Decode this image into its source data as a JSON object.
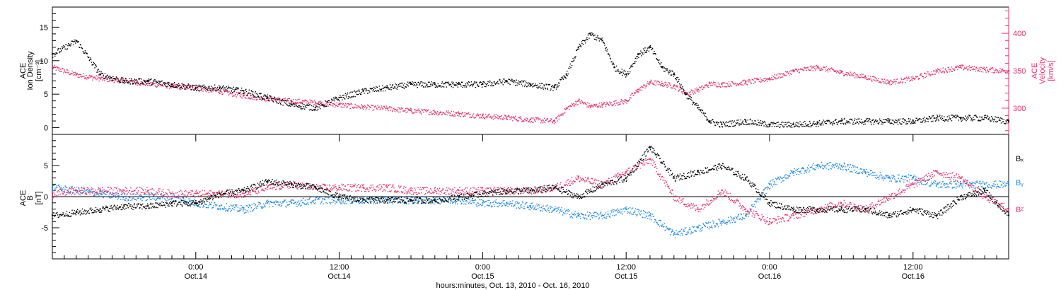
{
  "colors": {
    "black": "#000000",
    "pink": "#e8336b",
    "blue": "#1e88e5"
  },
  "chart_data": [
    {
      "type": "scatter",
      "panel": "top",
      "ylabel_left": [
        "ACE",
        "Ion Density",
        "[cm⁻³]"
      ],
      "ylabel_right": [
        "ACE",
        "Velocity",
        "[km/s]"
      ],
      "left_ticks": [
        "15",
        "10",
        "5",
        "0"
      ],
      "right_ticks": [
        "400",
        "350",
        "300"
      ],
      "ylim_left": [
        -1,
        18
      ],
      "ylim_right": [
        265,
        435
      ],
      "xlim_hours": [
        0,
        80
      ],
      "series": [
        {
          "key": "density",
          "axis": "left",
          "color": "#000000",
          "x": [
            0,
            2,
            4,
            6,
            8,
            10,
            12,
            14,
            16,
            18,
            20,
            22,
            24,
            26,
            28,
            30,
            32,
            34,
            36,
            38,
            40,
            42,
            43,
            44,
            45,
            46,
            47,
            48,
            49,
            50,
            51,
            52,
            53,
            54,
            55,
            56,
            58,
            60,
            62,
            64,
            66,
            68,
            70,
            72,
            74,
            76,
            78,
            80
          ],
          "y": [
            11,
            13,
            8,
            7,
            7,
            6.5,
            6,
            6,
            5.5,
            4.5,
            3.5,
            3,
            4.5,
            5.5,
            6,
            6.5,
            6.5,
            6.5,
            6.5,
            7,
            6.5,
            6,
            8,
            12,
            14,
            13,
            9,
            8,
            11,
            12,
            9,
            8,
            5,
            3,
            1,
            0.5,
            1,
            0.5,
            0.5,
            0.7,
            1,
            1,
            1,
            1,
            1.5,
            1.5,
            1.5,
            1
          ]
        },
        {
          "key": "velocity",
          "axis": "right",
          "color": "#e8336b",
          "x": [
            0,
            2,
            4,
            6,
            8,
            10,
            12,
            14,
            16,
            18,
            20,
            22,
            24,
            26,
            28,
            30,
            32,
            34,
            36,
            38,
            40,
            42,
            43,
            44,
            45,
            46,
            48,
            49,
            50,
            51,
            52,
            53,
            54,
            55,
            56,
            58,
            60,
            62,
            64,
            66,
            68,
            70,
            72,
            74,
            76,
            78,
            80
          ],
          "y": [
            355,
            345,
            340,
            337,
            333,
            330,
            327,
            323,
            317,
            313,
            310,
            308,
            305,
            302,
            300,
            297,
            295,
            293,
            290,
            288,
            285,
            283,
            300,
            310,
            303,
            305,
            310,
            325,
            335,
            333,
            330,
            320,
            325,
            333,
            332,
            335,
            340,
            350,
            355,
            348,
            342,
            335,
            340,
            350,
            355,
            352,
            350
          ]
        }
      ]
    },
    {
      "type": "scatter",
      "panel": "bottom",
      "ylabel_left": [
        "ACE",
        "B",
        "[nT]"
      ],
      "left_ticks": [
        "5",
        "0",
        "-5"
      ],
      "ylim": [
        -10,
        10
      ],
      "xlim_hours": [
        0,
        80
      ],
      "series": [
        {
          "key": "bx",
          "name": "Bx",
          "color": "#000000",
          "x": [
            0,
            2,
            4,
            6,
            8,
            10,
            12,
            14,
            16,
            18,
            20,
            22,
            24,
            26,
            28,
            30,
            32,
            34,
            36,
            38,
            40,
            42,
            44,
            46,
            48,
            50,
            52,
            54,
            56,
            58,
            60,
            62,
            64,
            66,
            68,
            70,
            72,
            74,
            76,
            78,
            80
          ],
          "y": [
            -3,
            -2.5,
            -2,
            -1.5,
            -1.5,
            -1,
            -1,
            0.5,
            1,
            2.5,
            2,
            1.5,
            0,
            -0.5,
            -0.5,
            -0.5,
            -0.5,
            0,
            0.5,
            1,
            1,
            1.5,
            0,
            2,
            3,
            8,
            3,
            4,
            5,
            3,
            -1,
            -2,
            -2,
            -2,
            -2,
            -3,
            -2,
            -3,
            0,
            1,
            -3
          ]
        },
        {
          "key": "by",
          "name": "By",
          "color": "#1e88e5",
          "x": [
            0,
            2,
            4,
            6,
            8,
            10,
            12,
            14,
            16,
            18,
            20,
            22,
            24,
            26,
            28,
            30,
            32,
            34,
            36,
            38,
            40,
            42,
            44,
            46,
            48,
            50,
            52,
            54,
            56,
            58,
            60,
            62,
            64,
            66,
            68,
            70,
            72,
            74,
            76,
            78,
            80
          ],
          "y": [
            1.5,
            1,
            0.5,
            0,
            0,
            0,
            -1,
            -1.5,
            -2,
            -1,
            -1,
            -0.5,
            -0.5,
            -0.5,
            -0.5,
            -0.5,
            -0.5,
            -0.5,
            -1,
            -1,
            -1.5,
            -2,
            -3,
            -3,
            -2,
            -3,
            -6,
            -5,
            -4,
            -3,
            2,
            4,
            5,
            5,
            4,
            3,
            3,
            2,
            2,
            2,
            2
          ]
        },
        {
          "key": "bz",
          "name": "Bz",
          "color": "#e8336b",
          "x": [
            0,
            2,
            4,
            6,
            8,
            10,
            12,
            14,
            16,
            18,
            20,
            22,
            24,
            26,
            28,
            30,
            32,
            34,
            36,
            38,
            40,
            42,
            44,
            46,
            48,
            50,
            52,
            54,
            56,
            58,
            60,
            62,
            64,
            66,
            68,
            70,
            72,
            74,
            76,
            78,
            80
          ],
          "y": [
            0.5,
            1,
            1,
            1,
            1,
            0.5,
            0.5,
            0.5,
            0.5,
            1.5,
            2,
            1.5,
            1.5,
            1.5,
            1.5,
            1,
            1,
            1,
            1,
            1,
            1,
            1.5,
            3,
            2,
            4,
            6,
            0,
            -2,
            1,
            -2,
            -4,
            -3,
            -2,
            -1,
            -2,
            0,
            2,
            4,
            3,
            0,
            -2
          ]
        }
      ],
      "legend": [
        "Bₓ",
        "Bᵧ",
        "Bᶻ"
      ]
    }
  ],
  "x_ticks": [
    {
      "time": "0:00",
      "date": "Oct.14"
    },
    {
      "time": "12:00",
      "date": "Oct.14"
    },
    {
      "time": "0:00",
      "date": "Oct.15"
    },
    {
      "time": "12:00",
      "date": "Oct.15"
    },
    {
      "time": "0:00",
      "date": "Oct.16"
    },
    {
      "time": "12:00",
      "date": "Oct.16"
    }
  ],
  "x_tick_hours": [
    12,
    24,
    36,
    48,
    60,
    72
  ],
  "xlabel": "hours:minutes, Oct. 13, 2010 - Oct. 16, 2010"
}
